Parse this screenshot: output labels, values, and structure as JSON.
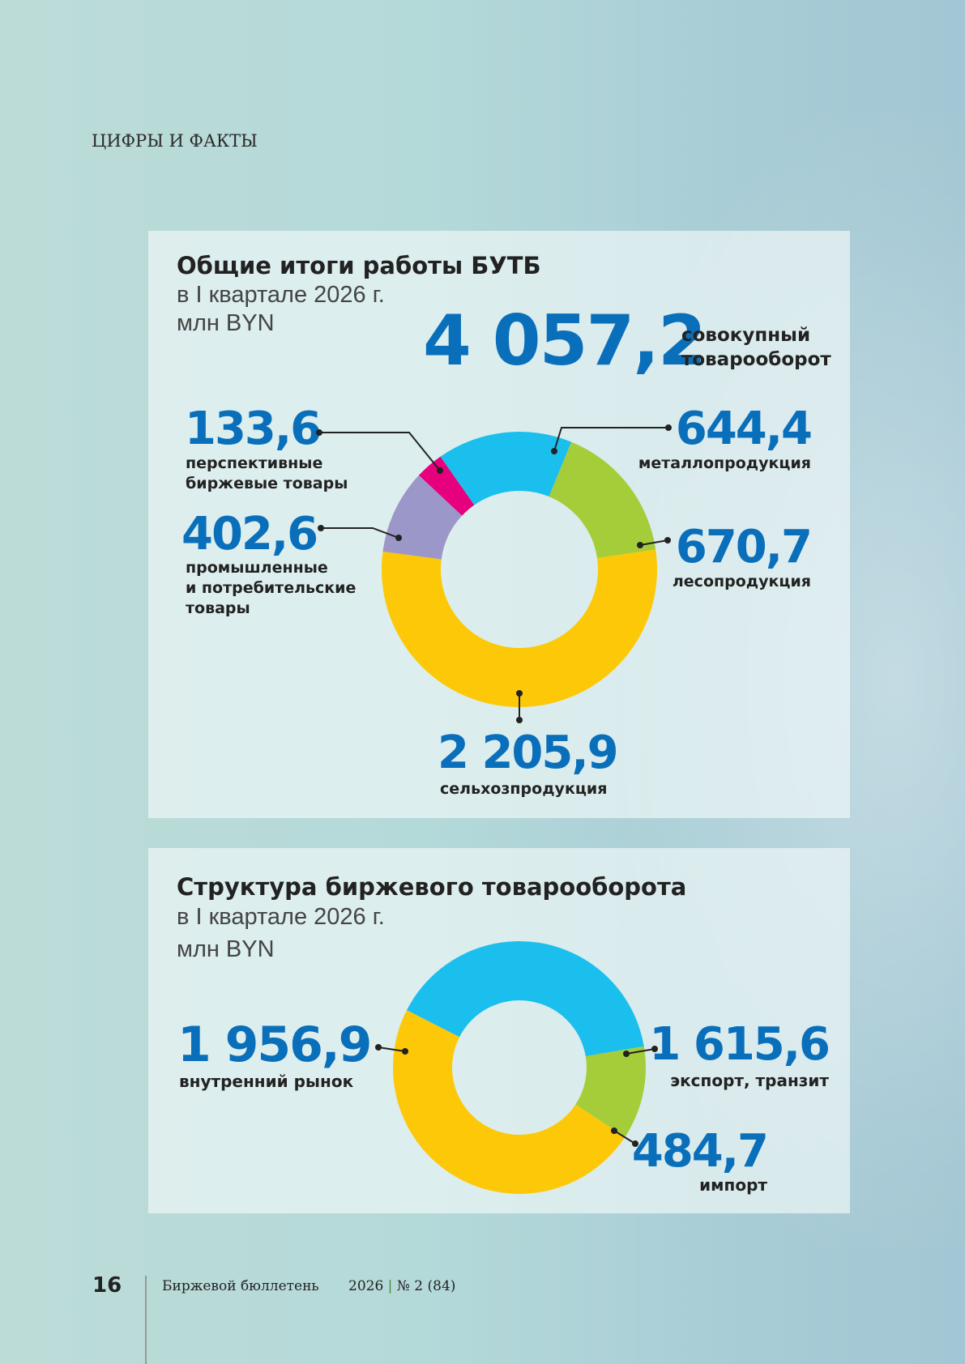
{
  "section_header": "ЦИФРЫ И ФАКТЫ",
  "colors": {
    "accent": "#0a6fba",
    "cyan": "#1bbfee",
    "green": "#a5cd39",
    "yellow": "#fdc808",
    "purple": "#9b97c8",
    "pink": "#e6007e"
  },
  "chart_data": [
    {
      "type": "pie",
      "title": "Общие итоги работы БУТБ",
      "subtitle": "в I квартале 2026 г.",
      "unit": "млн BYN",
      "total": {
        "value": "4 057,2",
        "label_1": "совокупный",
        "label_2": "товарооборот"
      },
      "series": [
        {
          "name": "металлопродукция",
          "value": 644.4,
          "display": "644,4",
          "color": "#1bbfee",
          "label_lines": [
            "металлопродукция"
          ]
        },
        {
          "name": "лесопродукция",
          "value": 670.7,
          "display": "670,7",
          "color": "#a5cd39",
          "label_lines": [
            "лесопродукция"
          ]
        },
        {
          "name": "сельхозпродукция",
          "value": 2205.9,
          "display": "2 205,9",
          "color": "#fdc808",
          "label_lines": [
            "сельхозпродукция"
          ]
        },
        {
          "name": "промышленные и потребительские товары",
          "value": 402.6,
          "display": "402,6",
          "color": "#9b97c8",
          "label_lines": [
            "промышленные",
            "и потребительские",
            "товары"
          ]
        },
        {
          "name": "перспективные биржевые товары",
          "value": 133.6,
          "display": "133,6",
          "color": "#e6007e",
          "label_lines": [
            "перспективные",
            "биржевые товары"
          ]
        }
      ]
    },
    {
      "type": "pie",
      "title": "Структура биржевого товарооборота",
      "subtitle": "в I квартале 2026 г.",
      "unit": "млн BYN",
      "series": [
        {
          "name": "экспорт, транзит",
          "value": 1615.6,
          "display": "1 615,6",
          "color": "#1bbfee",
          "label_lines": [
            "экспорт, транзит"
          ]
        },
        {
          "name": "импорт",
          "value": 484.7,
          "display": "484,7",
          "color": "#a5cd39",
          "label_lines": [
            "импорт"
          ]
        },
        {
          "name": "внутренний рынок",
          "value": 1956.9,
          "display": "1 956,9",
          "color": "#fdc808",
          "label_lines": [
            "внутренний рынок"
          ]
        }
      ]
    }
  ],
  "footer": {
    "page": "16",
    "magazine": "Биржевой бюллетень",
    "year": "2026",
    "separator": "|",
    "issue": "№ 2 (84)"
  }
}
